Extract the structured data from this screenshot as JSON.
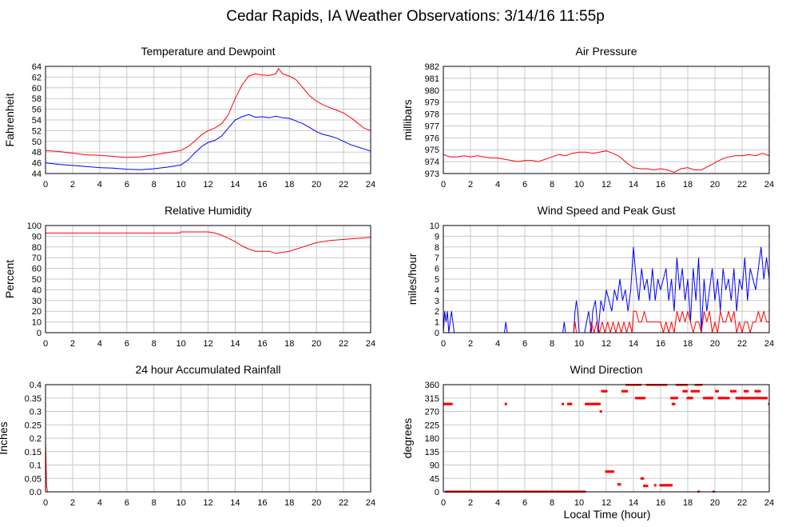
{
  "page_title": "Cedar Rapids, IA Weather Observations: 3/14/16 11:55p",
  "x_axis_label": "Local Time (hour)",
  "colors": {
    "red": "#ff0000",
    "blue": "#0000ff",
    "grid": "#c8c8c8"
  },
  "chart_data": [
    {
      "id": "temp",
      "type": "line",
      "title": "Temperature and Dewpoint",
      "ylabel": "Fahrenheit",
      "xlim": [
        0,
        24
      ],
      "ylim": [
        44,
        64
      ],
      "xticks": [
        0,
        2,
        4,
        6,
        8,
        10,
        12,
        14,
        16,
        18,
        20,
        22,
        24
      ],
      "yticks": [
        44,
        46,
        48,
        50,
        52,
        54,
        56,
        58,
        60,
        62,
        64
      ],
      "grid": true,
      "series": [
        {
          "color": "#ff0000",
          "x": [
            0,
            1,
            2,
            3,
            4,
            5,
            6,
            7,
            8,
            9,
            10,
            10.5,
            11,
            11.5,
            12,
            12.5,
            13,
            13.5,
            14,
            14.5,
            15,
            15.5,
            16,
            16.5,
            17,
            17.2,
            17.5,
            18,
            18.5,
            19,
            19.5,
            20,
            20.5,
            21,
            21.5,
            22,
            22.5,
            23,
            23.5,
            24
          ],
          "y": [
            48.3,
            48.1,
            47.8,
            47.5,
            47.4,
            47.2,
            47.0,
            47.1,
            47.5,
            47.9,
            48.3,
            49.0,
            50.0,
            51.2,
            52.0,
            52.5,
            53.3,
            55.0,
            58.0,
            60.5,
            62.2,
            62.6,
            62.4,
            62.3,
            62.6,
            63.6,
            62.6,
            62.2,
            61.5,
            60.0,
            58.5,
            57.5,
            56.8,
            56.3,
            55.8,
            55.3,
            54.5,
            53.5,
            52.5,
            52.0
          ]
        },
        {
          "color": "#0000ff",
          "x": [
            0,
            1,
            2,
            3,
            4,
            5,
            6,
            7,
            8,
            9,
            10,
            10.5,
            11,
            11.5,
            12,
            12.5,
            13,
            13.5,
            14,
            14.5,
            15,
            15.5,
            16,
            16.5,
            17,
            17.5,
            18,
            18.5,
            19,
            19.5,
            20,
            20.5,
            21,
            21.5,
            22,
            22.5,
            23,
            23.5,
            24
          ],
          "y": [
            46.0,
            45.7,
            45.5,
            45.3,
            45.1,
            45.0,
            44.8,
            44.7,
            44.9,
            45.2,
            45.6,
            46.5,
            47.8,
            49.0,
            49.8,
            50.2,
            51.0,
            52.5,
            54.0,
            54.6,
            55.0,
            54.5,
            54.6,
            54.4,
            54.7,
            54.4,
            54.3,
            53.8,
            53.3,
            52.6,
            51.8,
            51.3,
            51.0,
            50.6,
            50.0,
            49.4,
            49.0,
            48.6,
            48.2
          ]
        }
      ]
    },
    {
      "id": "pressure",
      "type": "line",
      "title": "Air Pressure",
      "ylabel": "millibars",
      "xlim": [
        0,
        24
      ],
      "ylim": [
        973,
        982
      ],
      "xticks": [
        0,
        2,
        4,
        6,
        8,
        10,
        12,
        14,
        16,
        18,
        20,
        22,
        24
      ],
      "yticks": [
        973,
        974,
        975,
        976,
        977,
        978,
        979,
        980,
        981,
        982
      ],
      "grid": true,
      "series": [
        {
          "color": "#ff0000",
          "x": [
            0,
            0.5,
            1,
            1.5,
            2,
            2.5,
            3,
            3.5,
            4,
            4.5,
            5,
            5.5,
            6,
            6.5,
            7,
            7.5,
            8,
            8.5,
            9,
            9.5,
            10,
            10.5,
            11,
            11.5,
            12,
            12.5,
            13,
            13.5,
            14,
            14.5,
            15,
            15.5,
            16,
            16.5,
            17,
            17.5,
            18,
            18.5,
            19,
            19.5,
            20,
            20.5,
            21,
            21.5,
            22,
            22.5,
            23,
            23.5,
            24
          ],
          "y": [
            974.6,
            974.4,
            974.4,
            974.5,
            974.4,
            974.5,
            974.4,
            974.3,
            974.3,
            974.2,
            974.1,
            974.0,
            974.1,
            974.1,
            974.0,
            974.2,
            974.4,
            974.6,
            974.5,
            974.7,
            974.8,
            974.8,
            974.7,
            974.8,
            974.9,
            974.7,
            974.4,
            973.9,
            973.5,
            973.4,
            973.4,
            973.3,
            973.4,
            973.3,
            973.1,
            973.4,
            973.5,
            973.3,
            973.3,
            973.6,
            973.9,
            974.2,
            974.4,
            974.5,
            974.5,
            974.6,
            974.5,
            974.7,
            974.5
          ]
        }
      ]
    },
    {
      "id": "humidity",
      "type": "line",
      "title": "Relative Humidity",
      "ylabel": "Percent",
      "xlim": [
        0,
        24
      ],
      "ylim": [
        0,
        100
      ],
      "xticks": [
        0,
        2,
        4,
        6,
        8,
        10,
        12,
        14,
        16,
        18,
        20,
        22,
        24
      ],
      "yticks": [
        0,
        10,
        20,
        30,
        40,
        50,
        60,
        70,
        80,
        90,
        100
      ],
      "grid": true,
      "series": [
        {
          "color": "#ff0000",
          "x": [
            0,
            2,
            4,
            6,
            8,
            9.9,
            10,
            11,
            12,
            12.5,
            13,
            13.5,
            14,
            14.5,
            15,
            15.5,
            16,
            16.5,
            17,
            17.5,
            18,
            18.5,
            19,
            19.5,
            20,
            20.5,
            21,
            22,
            23,
            24
          ],
          "y": [
            93,
            93,
            93,
            93,
            93,
            93,
            94,
            94,
            94,
            93,
            91,
            88,
            85,
            81,
            78,
            76,
            76,
            76,
            74,
            75,
            76,
            78,
            80,
            82,
            84,
            85,
            86,
            87,
            88,
            89
          ]
        }
      ]
    },
    {
      "id": "wind",
      "type": "line",
      "title": "Wind Speed and Peak Gust",
      "ylabel": "miles/hour",
      "xlim": [
        0,
        24
      ],
      "ylim": [
        0,
        10
      ],
      "xticks": [
        0,
        2,
        4,
        6,
        8,
        10,
        12,
        14,
        16,
        18,
        20,
        22,
        24
      ],
      "yticks": [
        0,
        1,
        2,
        3,
        4,
        5,
        6,
        7,
        8,
        9,
        10
      ],
      "grid": true,
      "series": [
        {
          "color": "#0000ff",
          "x": [
            0,
            0.1,
            0.2,
            0.3,
            0.4,
            0.6,
            0.8,
            1,
            2,
            4,
            4.5,
            4.6,
            4.7,
            5,
            6,
            7,
            8,
            8.8,
            8.9,
            9.0,
            9.2,
            9.6,
            9.7,
            9.8,
            9.9,
            10.0,
            10.2,
            10.4,
            10.7,
            10.9,
            11.0,
            11.2,
            11.4,
            11.6,
            11.8,
            12.0,
            12.2,
            12.4,
            12.6,
            12.8,
            13.0,
            13.2,
            13.4,
            13.6,
            13.8,
            14.0,
            14.2,
            14.4,
            14.6,
            14.8,
            15.0,
            15.2,
            15.4,
            15.6,
            15.8,
            16.0,
            16.2,
            16.4,
            16.6,
            16.8,
            17.0,
            17.2,
            17.4,
            17.6,
            17.8,
            18.0,
            18.2,
            18.4,
            18.6,
            18.8,
            19.0,
            19.2,
            19.4,
            19.6,
            19.8,
            20.0,
            20.2,
            20.4,
            20.6,
            20.8,
            21.0,
            21.2,
            21.4,
            21.6,
            21.8,
            22.0,
            22.2,
            22.4,
            22.6,
            22.8,
            23.0,
            23.2,
            23.4,
            23.6,
            23.8,
            24
          ],
          "y": [
            0,
            2,
            1,
            2,
            0,
            2,
            0,
            0,
            0,
            0,
            0,
            1,
            0,
            0,
            0,
            0,
            0,
            0,
            1,
            0,
            0,
            0,
            2,
            3,
            2,
            0,
            0,
            0,
            2,
            0,
            2,
            3,
            0,
            3,
            2,
            4,
            3,
            2,
            4,
            3,
            5,
            3,
            4,
            2,
            4,
            8,
            5,
            3,
            6,
            4,
            5,
            3,
            6,
            3,
            5,
            4,
            5,
            6,
            3,
            5,
            2,
            7,
            4,
            6,
            3,
            5,
            1,
            6,
            3,
            7,
            0,
            5,
            2,
            4,
            6,
            3,
            5,
            2,
            6,
            4,
            5,
            3,
            6,
            2,
            5,
            4,
            7,
            3,
            6,
            5,
            4,
            6,
            8,
            5,
            7,
            5
          ]
        },
        {
          "color": "#ff0000",
          "x": [
            0,
            9.6,
            9.7,
            9.8,
            10.0,
            10.4,
            10.8,
            10.9,
            11.1,
            11.3,
            11.5,
            11.7,
            11.9,
            12.1,
            12.3,
            12.5,
            12.7,
            12.9,
            13.1,
            13.3,
            13.5,
            13.7,
            13.9,
            14.0,
            14.2,
            14.4,
            14.6,
            14.8,
            15.0,
            15.2,
            15.4,
            15.6,
            15.8,
            16.0,
            16.2,
            16.4,
            16.6,
            16.8,
            17.0,
            17.2,
            17.4,
            17.6,
            17.8,
            18.0,
            18.2,
            18.4,
            18.6,
            18.8,
            19.0,
            19.2,
            19.4,
            19.6,
            19.8,
            20.0,
            20.2,
            20.4,
            20.6,
            20.8,
            21.0,
            21.2,
            21.4,
            21.6,
            21.8,
            22.0,
            22.2,
            22.4,
            22.6,
            22.8,
            23.0,
            23.2,
            23.4,
            23.6,
            23.8,
            24
          ],
          "y": [
            0,
            0,
            1,
            0,
            0,
            0,
            0,
            1,
            0,
            1,
            0,
            1,
            0,
            1,
            0,
            1,
            0,
            1,
            0,
            1,
            0,
            1,
            0,
            2,
            2,
            1,
            1,
            2,
            1,
            1,
            1,
            1,
            1,
            1,
            0,
            1,
            0,
            1,
            0,
            2,
            1,
            2,
            1,
            2,
            1,
            0,
            1,
            1,
            0,
            2,
            1,
            2,
            0,
            1,
            0,
            2,
            1,
            1,
            2,
            1,
            2,
            0,
            1,
            0,
            1,
            1,
            0,
            1,
            1,
            2,
            1,
            2,
            1,
            1
          ]
        }
      ]
    },
    {
      "id": "rain",
      "type": "line",
      "title": "24 hour Accumulated Rainfall",
      "ylabel": "Inches",
      "xlim": [
        0,
        24
      ],
      "ylim": [
        0,
        0.4
      ],
      "xticks": [
        0,
        2,
        4,
        6,
        8,
        10,
        12,
        14,
        16,
        18,
        20,
        22,
        24
      ],
      "yticks": [
        0,
        0.05,
        0.1,
        0.15,
        0.2,
        0.25,
        0.3,
        0.35,
        0.4
      ],
      "ytick_labels": [
        "0.0",
        "0.05",
        "0.1",
        "0.15",
        "0.2",
        "0.25",
        "0.3",
        "0.35",
        "0.4"
      ],
      "grid": true,
      "series": [
        {
          "color": "#ff0000",
          "x": [
            0,
            0.02,
            0.08,
            0.15,
            24
          ],
          "y": [
            0.19,
            0.15,
            0.02,
            0.0,
            0.0
          ]
        }
      ]
    },
    {
      "id": "winddir",
      "type": "scatter",
      "title": "Wind Direction",
      "ylabel": "degrees",
      "xlim": [
        0,
        24
      ],
      "ylim": [
        0,
        360
      ],
      "xticks": [
        0,
        2,
        4,
        6,
        8,
        10,
        12,
        14,
        16,
        18,
        20,
        22,
        24
      ],
      "yticks": [
        0,
        45,
        90,
        135,
        180,
        225,
        270,
        315,
        360
      ],
      "grid": true,
      "point_runs": [
        [
          0.0,
          0.6,
          295
        ],
        [
          0.2,
          9.9,
          0
        ],
        [
          4.6,
          4.6,
          295
        ],
        [
          8.8,
          8.8,
          295
        ],
        [
          9.2,
          9.4,
          295
        ],
        [
          10.1,
          10.4,
          0
        ],
        [
          10.5,
          11.5,
          295
        ],
        [
          11.6,
          11.6,
          270
        ],
        [
          11.7,
          12.0,
          338
        ],
        [
          12.0,
          12.5,
          68
        ],
        [
          12.9,
          13.0,
          25
        ],
        [
          13.2,
          13.5,
          338
        ],
        [
          13.5,
          14.5,
          360
        ],
        [
          14.2,
          14.8,
          315
        ],
        [
          14.6,
          14.7,
          45
        ],
        [
          14.8,
          15.0,
          20
        ],
        [
          15.0,
          16.4,
          360
        ],
        [
          15.6,
          15.6,
          22
        ],
        [
          16.0,
          16.8,
          22
        ],
        [
          16.8,
          17.2,
          315
        ],
        [
          16.9,
          17.0,
          295
        ],
        [
          17.2,
          17.9,
          360
        ],
        [
          17.7,
          17.9,
          338
        ],
        [
          18.0,
          18.3,
          315
        ],
        [
          18.3,
          18.8,
          338
        ],
        [
          18.6,
          19.0,
          360
        ],
        [
          18.8,
          18.8,
          0
        ],
        [
          19.2,
          19.8,
          315
        ],
        [
          19.9,
          19.9,
          0
        ],
        [
          20.1,
          20.2,
          338
        ],
        [
          20.3,
          21.0,
          315
        ],
        [
          21.2,
          21.5,
          338
        ],
        [
          21.6,
          22.4,
          315
        ],
        [
          22.2,
          22.4,
          338
        ],
        [
          22.5,
          23.8,
          315
        ],
        [
          23.0,
          23.3,
          338
        ],
        [
          24.0,
          24.0,
          295
        ]
      ]
    }
  ]
}
